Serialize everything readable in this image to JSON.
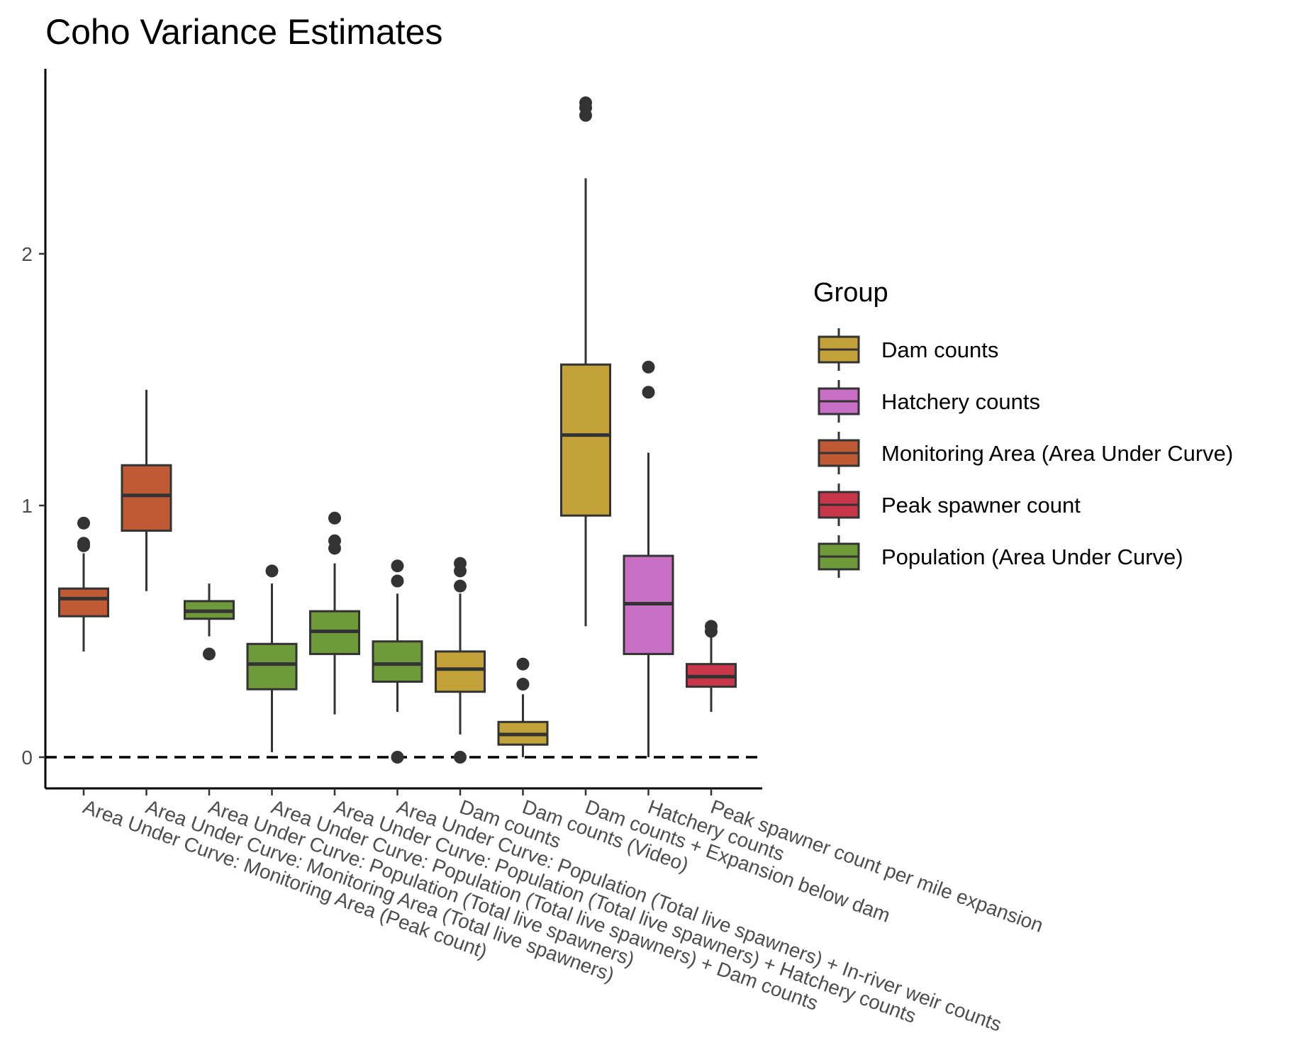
{
  "chart_data": {
    "type": "boxplot",
    "title": "Coho Variance Estimates",
    "xlabel": "",
    "ylabel": "",
    "ylim": [
      -0.13,
      2.7
    ],
    "yticks": [
      0,
      1,
      2
    ],
    "reference_line": {
      "y": 0,
      "style": "dashed"
    },
    "legend": {
      "title": "Group",
      "placement": "right",
      "entries": [
        {
          "name": "Dam counts",
          "color": "#c4a23a"
        },
        {
          "name": "Hatchery counts",
          "color": "#c96fc5"
        },
        {
          "name": "Monitoring Area (Area Under Curve)",
          "color": "#bf5a34"
        },
        {
          "name": "Peak spawner count",
          "color": "#c8364a"
        },
        {
          "name": "Population (Area Under Curve)",
          "color": "#6e9a3a"
        }
      ]
    },
    "categories": [
      "Area Under Curve: Monitoring Area (Peak count)",
      "Area Under Curve: Monitoring Area (Total live spawners)",
      "Area Under Curve: Population (Total live spawners)",
      "Area Under Curve: Population (Total live spawners) + Dam counts",
      "Area Under Curve: Population (Total live spawners) + Hatchery counts",
      "Area Under Curve: Population (Total live spawners) + In-river weir counts",
      "Dam counts",
      "Dam counts (Video)",
      "Dam counts + Expansion below dam",
      "Hatchery counts",
      "Peak spawner count per mile expansion"
    ],
    "boxes": [
      {
        "group": "Monitoring Area (Area Under Curve)",
        "whisker_low": 0.42,
        "q1": 0.56,
        "median": 0.63,
        "q3": 0.67,
        "whisker_high": 0.81,
        "outliers": [
          0.93,
          0.85,
          0.84
        ]
      },
      {
        "group": "Monitoring Area (Area Under Curve)",
        "whisker_low": 0.66,
        "q1": 0.9,
        "median": 1.04,
        "q3": 1.16,
        "whisker_high": 1.46,
        "outliers": []
      },
      {
        "group": "Population (Area Under Curve)",
        "whisker_low": 0.48,
        "q1": 0.55,
        "median": 0.58,
        "q3": 0.62,
        "whisker_high": 0.69,
        "outliers": [
          0.41
        ]
      },
      {
        "group": "Population (Area Under Curve)",
        "whisker_low": 0.02,
        "q1": 0.27,
        "median": 0.37,
        "q3": 0.45,
        "whisker_high": 0.69,
        "outliers": [
          0.74
        ]
      },
      {
        "group": "Population (Area Under Curve)",
        "whisker_low": 0.17,
        "q1": 0.41,
        "median": 0.5,
        "q3": 0.58,
        "whisker_high": 0.77,
        "outliers": [
          0.95,
          0.86,
          0.83
        ]
      },
      {
        "group": "Population (Area Under Curve)",
        "whisker_low": 0.18,
        "q1": 0.3,
        "median": 0.37,
        "q3": 0.46,
        "whisker_high": 0.65,
        "outliers": [
          0.76,
          0.7,
          0.0
        ]
      },
      {
        "group": "Dam counts",
        "whisker_low": 0.09,
        "q1": 0.26,
        "median": 0.35,
        "q3": 0.42,
        "whisker_high": 0.65,
        "outliers": [
          0.77,
          0.74,
          0.68,
          0.0
        ]
      },
      {
        "group": "Dam counts",
        "whisker_low": 0.0,
        "q1": 0.05,
        "median": 0.09,
        "q3": 0.14,
        "whisker_high": 0.25,
        "outliers": [
          0.37,
          0.29
        ]
      },
      {
        "group": "Dam counts",
        "whisker_low": 0.52,
        "q1": 0.96,
        "median": 1.28,
        "q3": 1.56,
        "whisker_high": 2.3,
        "outliers": [
          2.6,
          2.58,
          2.55
        ]
      },
      {
        "group": "Hatchery counts",
        "whisker_low": 0.0,
        "q1": 0.41,
        "median": 0.61,
        "q3": 0.8,
        "whisker_high": 1.21,
        "outliers": [
          1.55,
          1.45
        ]
      },
      {
        "group": "Peak spawner count",
        "whisker_low": 0.18,
        "q1": 0.28,
        "median": 0.32,
        "q3": 0.37,
        "whisker_high": 0.48,
        "outliers": [
          0.52,
          0.5
        ]
      }
    ]
  }
}
